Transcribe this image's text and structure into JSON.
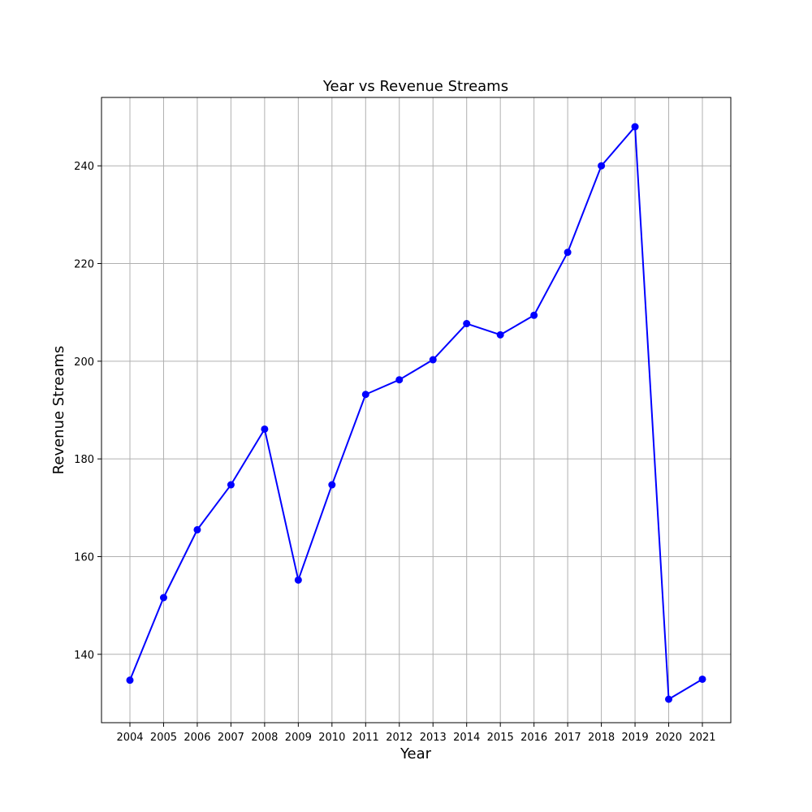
{
  "chart_data": {
    "type": "line",
    "title": "Year vs Revenue Streams",
    "xlabel": "Year",
    "ylabel": "Revenue Streams",
    "x": [
      2004,
      2005,
      2006,
      2007,
      2008,
      2009,
      2010,
      2011,
      2012,
      2013,
      2014,
      2015,
      2016,
      2017,
      2018,
      2019,
      2020,
      2021
    ],
    "series": [
      {
        "values": [
          134.7,
          151.6,
          165.5,
          174.7,
          186.1,
          155.2,
          174.7,
          193.2,
          196.2,
          200.3,
          207.7,
          205.4,
          209.4,
          222.3,
          240.0,
          248.0,
          130.8,
          134.9
        ]
      }
    ],
    "xticks": [
      "2004",
      "2005",
      "2006",
      "2007",
      "2008",
      "2009",
      "2010",
      "2011",
      "2012",
      "2013",
      "2014",
      "2015",
      "2016",
      "2017",
      "2018",
      "2019",
      "2020",
      "2021"
    ],
    "yticks": [
      140,
      160,
      180,
      200,
      220,
      240
    ],
    "ylim": [
      126.0,
      254.0
    ],
    "grid": true,
    "line_color": "#0000ff",
    "marker": "circle",
    "grid_color": "#b0b0b0"
  }
}
